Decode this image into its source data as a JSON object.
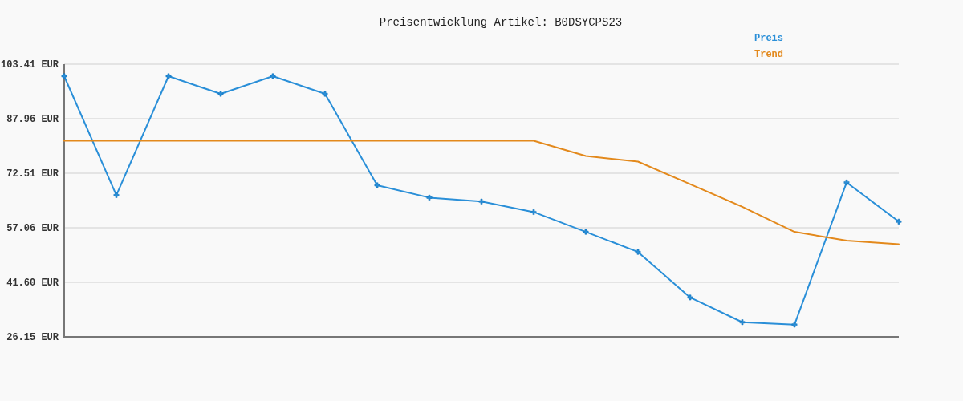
{
  "chart_data": {
    "type": "line",
    "title": "Preisentwicklung Artikel: B0DSYCPS23",
    "categories": [
      null,
      null,
      null,
      null,
      null,
      null,
      null,
      null,
      null,
      null,
      null,
      null,
      null,
      null,
      null,
      null,
      null
    ],
    "series": [
      {
        "name": "Preis",
        "color": "#2a8fd8",
        "marker": "cross",
        "values": [
          100.0,
          66.3,
          100.0,
          95.0,
          100.0,
          95.0,
          69.1,
          65.6,
          64.5,
          61.5,
          55.9,
          50.2,
          37.3,
          30.3,
          29.6,
          69.9,
          58.8
        ]
      },
      {
        "name": "Trend",
        "color": "#e3891c",
        "values": [
          81.7,
          81.7,
          81.7,
          81.7,
          81.7,
          81.7,
          81.7,
          81.7,
          81.7,
          81.7,
          77.4,
          75.8,
          69.4,
          63.0,
          55.9,
          53.4,
          52.4
        ]
      }
    ],
    "ylim": [
      26.15,
      103.41
    ],
    "yticks": [
      {
        "value": 26.15,
        "label": "26.15 EUR"
      },
      {
        "value": 41.6,
        "label": "41.60 EUR"
      },
      {
        "value": 57.06,
        "label": "57.06 EUR"
      },
      {
        "value": 72.51,
        "label": "72.51 EUR"
      },
      {
        "value": 87.96,
        "label": "87.96 EUR"
      },
      {
        "value": 103.41,
        "label": "103.41 EUR"
      }
    ],
    "grid": "y",
    "legend": "top right"
  }
}
